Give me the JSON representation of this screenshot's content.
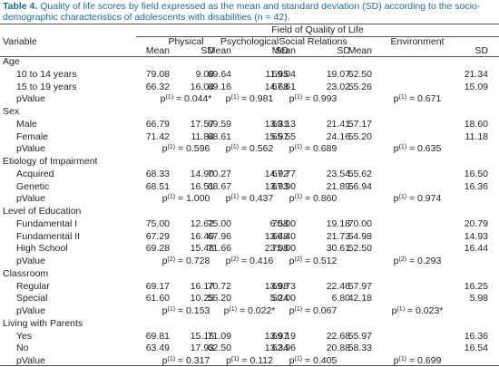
{
  "title": {
    "label": "Table 4.",
    "text": "Quality of life scores by field expressed as the mean and standard deviation (SD) according to the socio-demographic characteristics of adolescents with disabilities (n = 42)."
  },
  "table": {
    "super_header": "Field of Quality of Life",
    "columns": [
      "Variable",
      "Physical",
      "Psychological",
      "Social Relations",
      "Environment"
    ],
    "stat_labels": [
      "Mean",
      "SD",
      "Mean",
      "SD",
      "Mean",
      "SD",
      "Mean",
      "SD"
    ],
    "groups": [
      {
        "label": "Age",
        "rows": [
          {
            "label": "10 to 14 years",
            "cells": [
              "79.08",
              "9.08",
              "69.64",
              "11.95",
              "69.04",
              "19.07",
              "62.50",
              "21.34"
            ]
          },
          {
            "label": "15 to 19 years",
            "cells": [
              "66.32",
              "16.04",
              "69.16",
              "14.68",
              "67.61",
              "23.02",
              "55.26",
              "15.09"
            ]
          }
        ],
        "pvalue": {
          "label": "pValue",
          "cells": [
            {
              "p": "p",
              "sup": "(1)",
              "text": "= 0.044*"
            },
            {
              "p": "p",
              "sup": "(1)",
              "text": "= 0.981"
            },
            {
              "p": "p",
              "sup": "(1)",
              "text": "= 0.993"
            },
            {
              "p": "p",
              "sup": "(1)",
              "text": "= 0.671"
            }
          ]
        }
      },
      {
        "label": "Sex",
        "rows": [
          {
            "label": "Male",
            "cells": [
              "66.79",
              "17.57",
              "69.59",
              "13.31",
              "69.13",
              "21.41",
              "57.17",
              "18.60"
            ]
          },
          {
            "label": "Female",
            "cells": [
              "71.42",
              "11.84",
              "68.61",
              "15.97",
              "65.55",
              "24.16",
              "55.20",
              "11.18"
            ]
          }
        ],
        "pvalue": {
          "label": "pValue",
          "cells": [
            {
              "p": "p",
              "sup": "(1)",
              "text": "= 0.596"
            },
            {
              "p": "p",
              "sup": "(1)",
              "text": "= 0.562"
            },
            {
              "p": "p",
              "sup": "(1)",
              "text": "= 0.689"
            },
            {
              "p": "p",
              "sup": "(1)",
              "text": "= 0.635"
            }
          ]
        }
      },
      {
        "label": "Etiology of Impairment",
        "rows": [
          {
            "label": "Acquired",
            "cells": [
              "68.33",
              "14.90",
              "70.27",
              "14.92",
              "67.77",
              "23.54",
              "55.62",
              "16.50"
            ]
          },
          {
            "label": "Genetic",
            "cells": [
              "68.51",
              "16.51",
              "68.67",
              "13.93",
              "67.90",
              "21.89",
              "56.94",
              "16.36"
            ]
          }
        ],
        "pvalue": {
          "label": "pValue",
          "cells": [
            {
              "p": "p",
              "sup": "(1)",
              "text": "= 1.000"
            },
            {
              "p": "p",
              "sup": "(1)",
              "text": "= 0.437"
            },
            {
              "p": "p",
              "sup": "(1)",
              "text": "= 0.860"
            },
            {
              "p": "p",
              "sup": "(1)",
              "text": "= 0.974"
            }
          ]
        }
      },
      {
        "label": "Level of Education",
        "rows": [
          {
            "label": "Fundamental I",
            "cells": [
              "75.00",
              "12.62",
              "75.00",
              "6.58",
              "70.00",
              "19.18",
              "70.00",
              "20.79"
            ]
          },
          {
            "label": "Fundamental II",
            "cells": [
              "67.29",
              "16.40",
              "67.96",
              "13.48",
              "66.40",
              "21.73",
              "54.98",
              "14.93"
            ]
          },
          {
            "label": "High School",
            "cells": [
              "69.28",
              "15.48",
              "71.66",
              "23.08",
              "75.00",
              "30.61",
              "52.50",
              "16.44"
            ]
          }
        ],
        "pvalue": {
          "label": "pValue",
          "cells": [
            {
              "p": "p",
              "sup": "(2)",
              "text": "= 0.728"
            },
            {
              "p": "p",
              "sup": "(2)",
              "text": "= 0.416"
            },
            {
              "p": "p",
              "sup": "(2)",
              "text": "= 0.512"
            },
            {
              "p": "p",
              "sup": "(2)",
              "text": "= 0.293"
            }
          ]
        }
      },
      {
        "label": "Classroom",
        "rows": [
          {
            "label": "Regular",
            "cells": [
              "69.17",
              "16.17",
              "70.72",
              "13.98",
              "69.73",
              "22.46",
              "57.97",
              "16.25"
            ]
          },
          {
            "label": "Special",
            "cells": [
              "61.60",
              "10.25",
              "55.20",
              "5.24",
              "50.00",
              "6.80",
              "42.18",
              "5.98"
            ]
          }
        ],
        "pvalue": {
          "label": "pValue",
          "cells": [
            {
              "p": "p",
              "sup": "(1)",
              "text": "= 0.153"
            },
            {
              "p": "p",
              "sup": "(1)",
              "text": "= 0.022*"
            },
            {
              "p": "p",
              "sup": "(1)",
              "text": "= 0.067"
            },
            {
              "p": "p",
              "sup": "(1)",
              "text": "= 0.023*"
            }
          ]
        }
      },
      {
        "label": "Living with Parents",
        "rows": [
          {
            "label": "Yes",
            "cells": [
              "69.81",
              "15.15",
              "71.09",
              "13.97",
              "69.19",
              "22.68",
              "55.97",
              "16.36"
            ]
          },
          {
            "label": "No",
            "cells": [
              "63.49",
              "17.93",
              "62.50",
              "13.34",
              "62.96",
              "20.88",
              "58.33",
              "16.54"
            ]
          }
        ],
        "pvalue": {
          "label": "pValue",
          "cells": [
            {
              "p": "p",
              "sup": "(1)",
              "text": "= 0.317"
            },
            {
              "p": "p",
              "sup": "(1)",
              "text": "= 0.112"
            },
            {
              "p": "p",
              "sup": "(1)",
              "text": "= 0.405"
            },
            {
              "p": "p",
              "sup": "(1)",
              "text": "= 0.699"
            }
          ]
        }
      }
    ]
  }
}
